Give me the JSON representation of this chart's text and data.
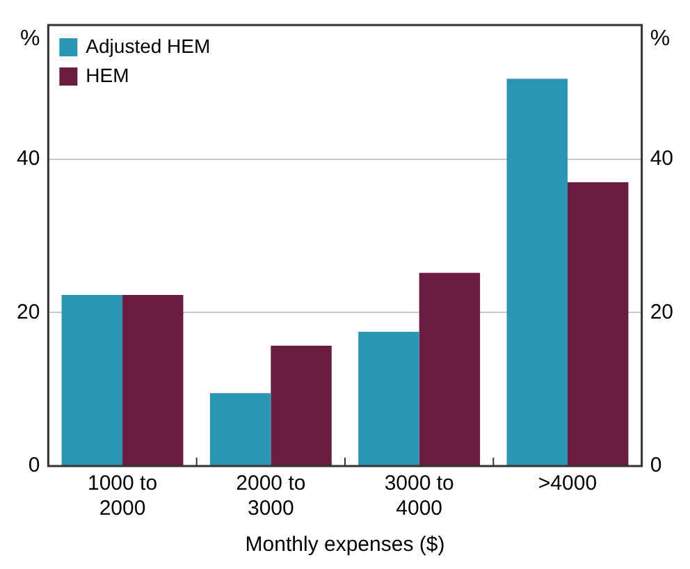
{
  "chart_data": {
    "type": "bar",
    "xlabel": "Monthly expenses ($)",
    "ylabel": "%",
    "y2label": "%",
    "categories": [
      "1000 to 2000",
      "2000 to 3000",
      "3000 to 4000",
      ">4000"
    ],
    "series": [
      {
        "name": "Adjusted HEM",
        "color": "#2a96b4",
        "values": [
          22.3,
          9.5,
          17.5,
          50.5
        ]
      },
      {
        "name": "HEM",
        "color": "#6b1c41",
        "values": [
          22.3,
          15.7,
          25.2,
          37
        ]
      }
    ],
    "ylim": [
      0,
      57.5
    ],
    "yticks": [
      0,
      20,
      40
    ],
    "y2lim": [
      0,
      57.5
    ],
    "y2ticks": [
      0,
      20,
      40
    ],
    "grid": "y",
    "legend": "top left"
  }
}
